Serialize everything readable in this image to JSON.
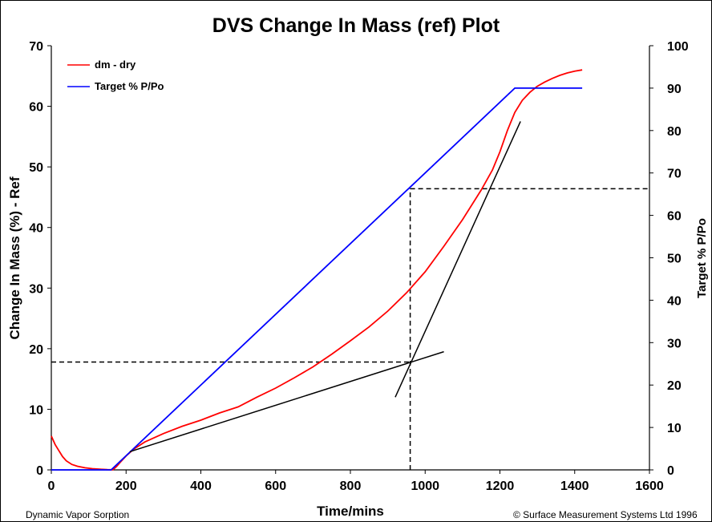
{
  "chart_data": {
    "type": "line",
    "title": "DVS Change In Mass (ref) Plot",
    "xlabel": "Time/mins",
    "ylabel": "Change In Mass (%) - Ref",
    "y2label": "Target % P/Po",
    "xlim": [
      0,
      1600
    ],
    "ylim": [
      0,
      70
    ],
    "y2lim": [
      0,
      100
    ],
    "xticks": [
      "0",
      "200",
      "400",
      "600",
      "800",
      "1000",
      "1200",
      "1400",
      "1600"
    ],
    "yticks": [
      "0",
      "10",
      "20",
      "30",
      "40",
      "50",
      "60",
      "70"
    ],
    "y2ticks": [
      "0",
      "10",
      "20",
      "30",
      "40",
      "50",
      "60",
      "70",
      "80",
      "90",
      "100"
    ],
    "legend_position": "top-left",
    "grid": false,
    "series": [
      {
        "name": "dm - dry",
        "color": "#ff0000",
        "axis": "left",
        "x": [
          0,
          10,
          20,
          30,
          40,
          55,
          70,
          90,
          110,
          130,
          150,
          165,
          175,
          185,
          200,
          220,
          250,
          300,
          350,
          400,
          450,
          500,
          550,
          600,
          650,
          700,
          750,
          800,
          850,
          900,
          950,
          1000,
          1050,
          1100,
          1150,
          1180,
          1200,
          1220,
          1240,
          1260,
          1280,
          1300,
          1320,
          1340,
          1360,
          1380,
          1400,
          1420
        ],
        "y": [
          5.6,
          4.2,
          3.2,
          2.2,
          1.5,
          0.9,
          0.6,
          0.35,
          0.2,
          0.1,
          0.04,
          0.02,
          0.6,
          1.3,
          2.3,
          3.4,
          4.6,
          6.0,
          7.2,
          8.2,
          9.4,
          10.4,
          12.0,
          13.5,
          15.2,
          17.0,
          19.1,
          21.3,
          23.6,
          26.2,
          29.2,
          32.7,
          36.9,
          41.3,
          46.2,
          49.5,
          52.5,
          56.0,
          59.0,
          61.0,
          62.3,
          63.3,
          64.0,
          64.6,
          65.1,
          65.5,
          65.8,
          66.0
        ]
      },
      {
        "name": "Target % P/Po",
        "color": "#0000ff",
        "axis": "right",
        "x": [
          0,
          160,
          1240,
          1420
        ],
        "y": [
          0,
          0,
          90,
          90
        ]
      }
    ],
    "tangent_lines": [
      {
        "color": "#000000",
        "x": [
          210,
          1050
        ],
        "y": [
          3.0,
          19.5
        ]
      },
      {
        "color": "#000000",
        "x": [
          920,
          1255
        ],
        "y": [
          12.0,
          57.5
        ]
      }
    ],
    "reference_lines": [
      {
        "color": "#000000",
        "style": "dashed",
        "x": [
          0,
          960
        ],
        "y": [
          17.8,
          17.8
        ]
      },
      {
        "color": "#000000",
        "style": "dashed",
        "x": [
          960,
          960
        ],
        "y": [
          0,
          46.4
        ]
      },
      {
        "color": "#000000",
        "style": "dashed",
        "x": [
          960,
          1600
        ],
        "y": [
          46.4,
          46.4
        ]
      }
    ]
  },
  "footer": {
    "left": "Dynamic Vapor Sorption",
    "right": "© Surface Measurement Systems Ltd 1996"
  }
}
